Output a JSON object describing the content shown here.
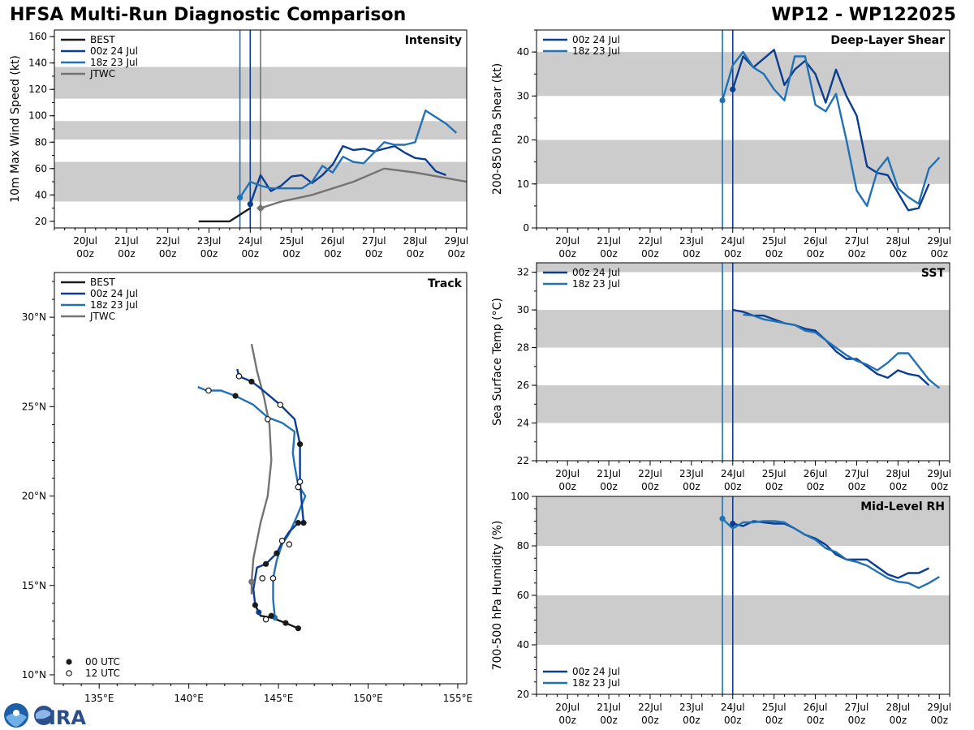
{
  "header": {
    "title": "HFSA Multi-Run Diagnostic Comparison",
    "storm": "WP12 - WP122025"
  },
  "colors": {
    "best": "#1a1a1a",
    "run00z": "#0b3d91",
    "run18z": "#2171b5",
    "jtwc": "#737373",
    "band": "#cccccc"
  },
  "legend": {
    "best": "BEST",
    "run00z": "00z 24 Jul",
    "run18z": "18z 23 Jul",
    "jtwc": "JTWC",
    "utc00": "00 UTC",
    "utc12": "12 UTC"
  },
  "time_axis": {
    "range_days": [
      -0.75,
      9.25
    ],
    "ticks": [
      {
        "d": 0,
        "top": "20Jul",
        "bottom": "00z"
      },
      {
        "d": 1,
        "top": "21Jul",
        "bottom": "00z"
      },
      {
        "d": 2,
        "top": "22Jul",
        "bottom": "00z"
      },
      {
        "d": 3,
        "top": "23Jul",
        "bottom": "00z"
      },
      {
        "d": 4,
        "top": "24Jul",
        "bottom": "00z"
      },
      {
        "d": 5,
        "top": "25Jul",
        "bottom": "00z"
      },
      {
        "d": 6,
        "top": "26Jul",
        "bottom": "00z"
      },
      {
        "d": 7,
        "top": "27Jul",
        "bottom": "00z"
      },
      {
        "d": 8,
        "top": "28Jul",
        "bottom": "00z"
      },
      {
        "d": 9,
        "top": "29Jul",
        "bottom": "00z"
      }
    ],
    "init_18z": 3.75,
    "init_00z": 4.0,
    "jtwc_marker": 4.25
  },
  "chart_data": [
    {
      "id": "intensity",
      "type": "line",
      "title": "Intensity",
      "ylabel": "10m Max Wind Speed (kt)",
      "ylim": [
        15,
        165
      ],
      "yticks": [
        20,
        40,
        60,
        80,
        100,
        120,
        140,
        160
      ],
      "bands": [
        [
          35,
          65
        ],
        [
          82,
          96
        ],
        [
          113,
          137
        ]
      ],
      "series": [
        {
          "name": "BEST",
          "key": "best",
          "x": [
            2.75,
            3.5,
            3.75,
            4.0
          ],
          "y": [
            20,
            20,
            25,
            30
          ]
        },
        {
          "name": "00z 24 Jul",
          "key": "run00z",
          "x": [
            4.0,
            4.25,
            4.5,
            4.75,
            5.0,
            5.25,
            5.5,
            5.75,
            6.0,
            6.25,
            6.5,
            6.75,
            7.0,
            7.25,
            7.5,
            7.75,
            8.0,
            8.25,
            8.5,
            8.75
          ],
          "y": [
            33,
            55,
            43,
            47,
            54,
            55,
            49,
            55,
            63,
            77,
            74,
            75,
            73,
            75,
            77,
            72,
            68,
            67,
            58,
            55
          ]
        },
        {
          "name": "18z 23 Jul",
          "key": "run18z",
          "x": [
            3.75,
            4.0,
            4.25,
            4.5,
            4.75,
            5.0,
            5.25,
            5.5,
            5.75,
            6.0,
            6.25,
            6.5,
            6.75,
            7.0,
            7.25,
            7.5,
            7.75,
            8.0,
            8.25,
            8.5,
            8.75,
            9.0
          ],
          "y": [
            38,
            50,
            47,
            45,
            45,
            45,
            45,
            50,
            62,
            57,
            69,
            65,
            64,
            72,
            80,
            78,
            78,
            80,
            104,
            99,
            94,
            87
          ]
        },
        {
          "name": "JTWC",
          "key": "jtwc",
          "x": [
            4.25,
            4.75,
            5.5,
            6.5,
            7.25,
            8.0,
            9.25
          ],
          "y": [
            30,
            35,
            40,
            50,
            60,
            57,
            50
          ]
        }
      ],
      "markers": [
        {
          "key": "run18z",
          "x": 3.75,
          "y": 38
        },
        {
          "key": "run00z",
          "x": 4.0,
          "y": 33
        },
        {
          "key": "jtwc",
          "x": 4.25,
          "y": 30,
          "shape": "diamond"
        }
      ],
      "jtwc_line": true
    },
    {
      "id": "shear",
      "type": "line",
      "title": "Deep-Layer Shear",
      "ylabel": "200-850 hPa Shear (kt)",
      "ylim": [
        0,
        45
      ],
      "yticks": [
        0,
        10,
        20,
        30,
        40
      ],
      "bands": [
        [
          10,
          20
        ],
        [
          30,
          40
        ]
      ],
      "series": [
        {
          "name": "00z 24 Jul",
          "key": "run00z",
          "x": [
            4.0,
            4.25,
            4.5,
            4.75,
            5.0,
            5.25,
            5.5,
            5.75,
            6.0,
            6.25,
            6.5,
            6.75,
            7.0,
            7.25,
            7.5,
            7.75,
            8.0,
            8.25,
            8.5,
            8.75
          ],
          "y": [
            31.5,
            39,
            36.5,
            38.5,
            40.5,
            32.5,
            36,
            38,
            35,
            28.5,
            36,
            30,
            25.5,
            14,
            12.5,
            12,
            8,
            4,
            4.5,
            10
          ]
        },
        {
          "name": "18z 23 Jul",
          "key": "run18z",
          "x": [
            3.75,
            4.0,
            4.25,
            4.5,
            4.75,
            5.0,
            5.25,
            5.5,
            5.75,
            6.0,
            6.25,
            6.5,
            6.75,
            7.0,
            7.25,
            7.5,
            7.75,
            8.0,
            8.25,
            8.5,
            8.75,
            9.0
          ],
          "y": [
            29,
            37,
            40,
            36.5,
            35,
            31.5,
            29,
            39,
            39,
            28,
            26.5,
            30.5,
            20,
            8.5,
            5,
            13,
            16,
            9,
            7,
            5.5,
            13.5,
            16
          ]
        }
      ],
      "markers": [
        {
          "key": "run18z",
          "x": 3.75,
          "y": 29
        },
        {
          "key": "run00z",
          "x": 4.0,
          "y": 31.5
        }
      ],
      "jtwc_line": false
    },
    {
      "id": "sst",
      "type": "line",
      "title": "SST",
      "ylabel": "Sea Surface Temp (°C)",
      "ylim": [
        22,
        32.5
      ],
      "yticks": [
        22,
        24,
        26,
        28,
        30,
        32
      ],
      "bands": [
        [
          24,
          26
        ],
        [
          28,
          30
        ],
        [
          32,
          32.5
        ]
      ],
      "series": [
        {
          "name": "00z 24 Jul",
          "key": "run00z",
          "x": [
            4.0,
            4.25,
            4.5,
            4.75,
            5.0,
            5.25,
            5.5,
            5.75,
            6.0,
            6.25,
            6.5,
            6.75,
            7.0,
            7.25,
            7.5,
            7.75,
            8.0,
            8.25,
            8.5,
            8.75
          ],
          "y": [
            30.0,
            29.9,
            29.7,
            29.7,
            29.5,
            29.3,
            29.2,
            29.0,
            28.9,
            28.4,
            27.8,
            27.4,
            27.4,
            27.0,
            26.6,
            26.4,
            26.8,
            26.6,
            26.5,
            26.0
          ]
        },
        {
          "name": "18z 23 Jul",
          "key": "run18z",
          "x": [
            4.25,
            4.5,
            4.75,
            5.0,
            5.25,
            5.5,
            5.75,
            6.0,
            6.25,
            6.5,
            6.75,
            7.0,
            7.25,
            7.5,
            7.75,
            8.0,
            8.25,
            8.5,
            8.75,
            9.0
          ],
          "y": [
            29.75,
            29.7,
            29.5,
            29.4,
            29.3,
            29.2,
            28.9,
            28.8,
            28.4,
            28.0,
            27.6,
            27.3,
            27.1,
            26.8,
            27.2,
            27.7,
            27.7,
            27.0,
            26.3,
            25.85
          ]
        }
      ],
      "markers": [],
      "jtwc_line": false
    },
    {
      "id": "rh",
      "type": "line",
      "title": "Mid-Level RH",
      "ylabel": "700-500 hPa Humidity (%)",
      "ylim": [
        20,
        100
      ],
      "yticks": [
        20,
        40,
        60,
        80,
        100
      ],
      "bands": [
        [
          40,
          60
        ],
        [
          80,
          100
        ]
      ],
      "series": [
        {
          "name": "00z 24 Jul",
          "key": "run00z",
          "x": [
            4.0,
            4.25,
            4.5,
            4.75,
            5.0,
            5.25,
            5.5,
            5.75,
            6.0,
            6.25,
            6.5,
            6.75,
            7.0,
            7.25,
            7.5,
            7.75,
            8.0,
            8.25,
            8.5,
            8.75
          ],
          "y": [
            89,
            88,
            90,
            89.5,
            89,
            89,
            87,
            84.5,
            83,
            80.5,
            76.5,
            74.5,
            74.5,
            74.5,
            71.5,
            68.5,
            67,
            69,
            69,
            71
          ]
        },
        {
          "name": "18z 23 Jul",
          "key": "run18z",
          "x": [
            3.75,
            4.0,
            4.25,
            4.5,
            4.75,
            5.0,
            5.25,
            5.5,
            5.75,
            6.0,
            6.25,
            6.5,
            6.75,
            7.0,
            7.25,
            7.5,
            7.75,
            8.0,
            8.25,
            8.5,
            8.75,
            9.0
          ],
          "y": [
            91,
            87,
            89.5,
            89.5,
            90,
            90,
            89.5,
            87,
            84.5,
            82.5,
            79,
            77.5,
            74.5,
            73.5,
            72,
            69.5,
            67,
            65.5,
            65,
            63,
            65,
            67.5
          ]
        }
      ],
      "markers": [
        {
          "key": "run18z",
          "x": 3.75,
          "y": 91
        },
        {
          "key": "run00z",
          "x": 4.0,
          "y": 89
        }
      ],
      "jtwc_line": false
    },
    {
      "id": "track",
      "type": "line",
      "title": "Track",
      "xlim": [
        132.5,
        155.5
      ],
      "ylim": [
        9.5,
        32.5
      ],
      "xticks": [
        {
          "v": 135,
          "label": "135°E"
        },
        {
          "v": 140,
          "label": "140°E"
        },
        {
          "v": 145,
          "label": "145°E"
        },
        {
          "v": 150,
          "label": "150°E"
        },
        {
          "v": 155,
          "label": "155°E"
        }
      ],
      "yticks": [
        {
          "v": 10,
          "label": "10°N"
        },
        {
          "v": 15,
          "label": "15°N"
        },
        {
          "v": 20,
          "label": "20°N"
        },
        {
          "v": 25,
          "label": "25°N"
        },
        {
          "v": 30,
          "label": "30°N"
        }
      ],
      "series": [
        {
          "name": "BEST",
          "key": "best",
          "lon": [
            146.1,
            145.4,
            144.6,
            144.0,
            143.7
          ],
          "lat": [
            12.6,
            12.9,
            13.2,
            13.3,
            13.9
          ]
        },
        {
          "name": "00z 24 Jul",
          "key": "run00z",
          "lon": [
            143.7,
            143.6,
            143.7,
            143.8,
            144.3,
            144.9,
            145.2,
            145.6,
            146.1,
            146.4,
            146.3,
            146.2,
            146.2,
            145.9,
            145.1,
            143.9,
            143.5,
            142.8,
            142.7
          ],
          "lat": [
            13.9,
            14.8,
            15.4,
            16.0,
            16.2,
            16.8,
            17.4,
            18.0,
            18.5,
            18.5,
            19.6,
            20.8,
            22.9,
            24.3,
            25.1,
            26.1,
            26.4,
            26.7,
            27.1
          ],
          "dots": [
            {
              "lon": 144.3,
              "lat": 16.2,
              "f": 0
            },
            {
              "lon": 144.9,
              "lat": 16.8,
              "f": 0
            },
            {
              "lon": 146.1,
              "lat": 18.5,
              "f": 0
            },
            {
              "lon": 146.4,
              "lat": 18.5,
              "f": 0
            },
            {
              "lon": 146.2,
              "lat": 20.8,
              "f": 1
            },
            {
              "lon": 146.2,
              "lat": 22.9,
              "f": 0
            },
            {
              "lon": 145.1,
              "lat": 25.1,
              "f": 1
            },
            {
              "lon": 143.5,
              "lat": 26.4,
              "f": 0
            },
            {
              "lon": 142.8,
              "lat": 26.7,
              "f": 1
            }
          ]
        },
        {
          "name": "18z 23 Jul",
          "key": "run18z",
          "lon": [
            144.8,
            144.7,
            144.7,
            144.9,
            145.2,
            145.6,
            146.0,
            146.5,
            146.1,
            145.9,
            145.8,
            145.9,
            145.2,
            144.4,
            143.6,
            142.6,
            141.8,
            141.0,
            140.5
          ],
          "lat": [
            13.2,
            14.2,
            15.4,
            16.4,
            17.3,
            17.9,
            18.8,
            20.0,
            20.6,
            21.7,
            22.4,
            23.6,
            24.1,
            24.4,
            25.1,
            25.6,
            25.9,
            25.9,
            26.1
          ],
          "dots": [
            {
              "lon": 145.6,
              "lat": 17.3,
              "f": 1
            },
            {
              "lon": 145.2,
              "lat": 17.5,
              "f": 1
            },
            {
              "lon": 144.7,
              "lat": 15.4,
              "f": 1
            },
            {
              "lon": 144.1,
              "lat": 15.4,
              "f": 1
            },
            {
              "lon": 144.3,
              "lat": 13.1,
              "f": 1
            },
            {
              "lon": 146.1,
              "lat": 20.5,
              "f": 1
            },
            {
              "lon": 144.4,
              "lat": 24.3,
              "f": 1
            },
            {
              "lon": 142.6,
              "lat": 25.6,
              "f": 0
            },
            {
              "lon": 141.1,
              "lat": 25.9,
              "f": 1
            }
          ]
        },
        {
          "name": "JTWC",
          "key": "jtwc",
          "lon": [
            143.5,
            143.5,
            143.6,
            144.0,
            144.4,
            144.6,
            144.5,
            144.2,
            143.8,
            143.5
          ],
          "lat": [
            14.5,
            15.2,
            16.5,
            18.5,
            20.0,
            22.0,
            24.0,
            25.5,
            27.0,
            28.5
          ],
          "dots": [
            {
              "lon": 143.5,
              "lat": 15.2,
              "f": 2
            }
          ]
        }
      ],
      "best_dots": [
        {
          "lon": 146.1,
          "lat": 12.6,
          "f": 0
        },
        {
          "lon": 145.4,
          "lat": 12.9,
          "f": 0
        },
        {
          "lon": 144.6,
          "lat": 13.3,
          "f": 0
        },
        {
          "lon": 143.7,
          "lat": 13.9,
          "f": 0
        }
      ],
      "start_marks": [
        {
          "key": "run00z",
          "lon": 143.9,
          "lat": 13.5
        },
        {
          "key": "run18z",
          "lon": 144.8,
          "lat": 13.2
        }
      ]
    }
  ]
}
